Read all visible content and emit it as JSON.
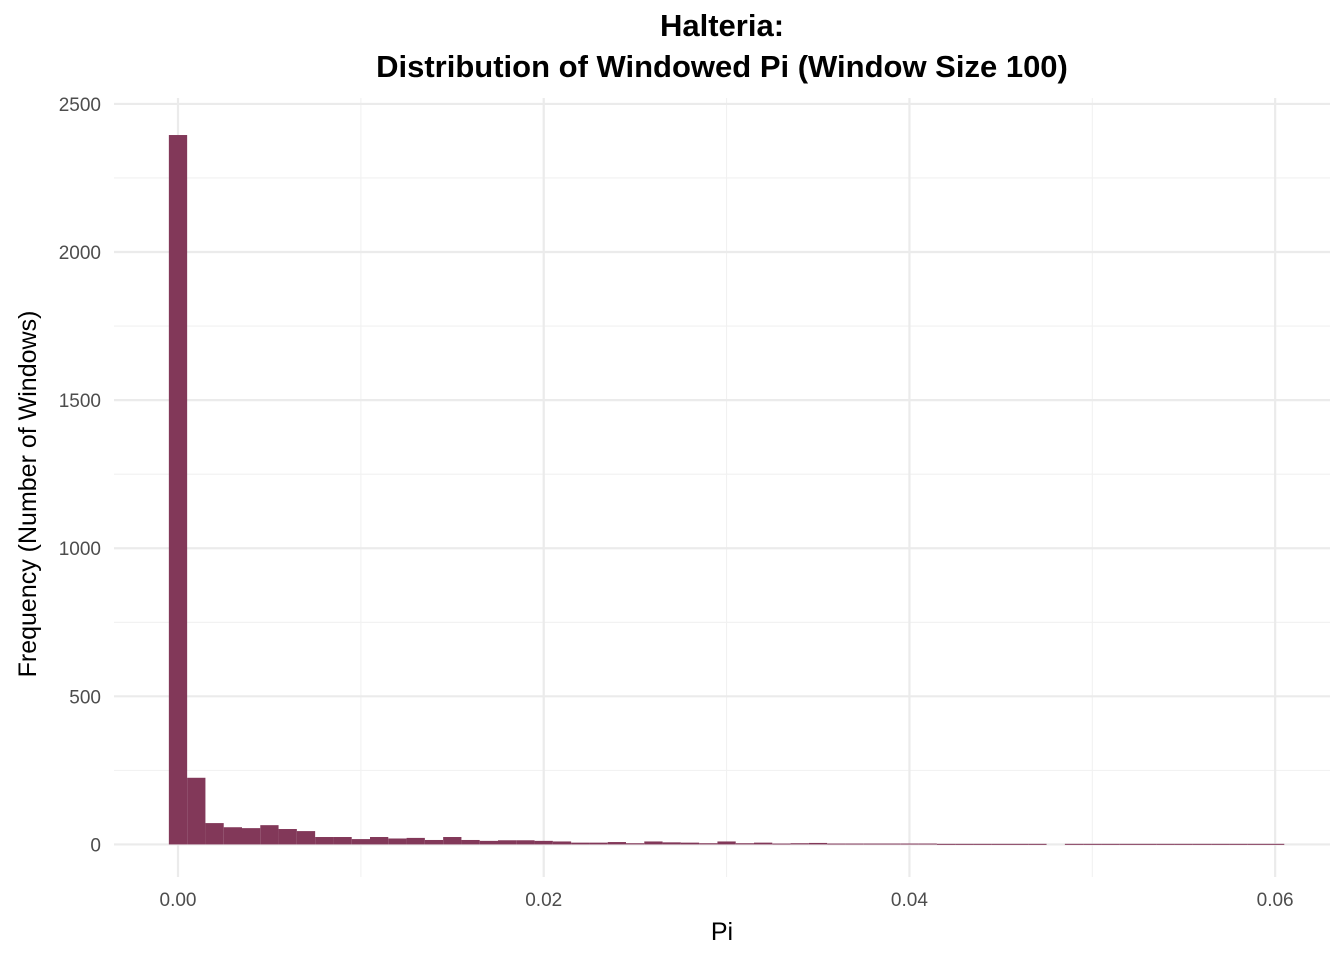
{
  "chart_data": {
    "type": "bar",
    "title_lines": [
      "Halteria:",
      "Distribution of Windowed Pi (Window Size 100)"
    ],
    "xlabel": "Pi",
    "ylabel": "Frequency (Number of Windows)",
    "xlim": [
      -0.0035,
      0.063
    ],
    "ylim": [
      -110,
      2520
    ],
    "x_ticks": [
      0.0,
      0.02,
      0.04,
      0.06
    ],
    "x_tick_labels": [
      "0.00",
      "0.02",
      "0.04",
      "0.06"
    ],
    "y_ticks": [
      0,
      500,
      1000,
      1500,
      2000,
      2500
    ],
    "y_tick_labels": [
      "0",
      "500",
      "1000",
      "1500",
      "2000",
      "2500"
    ],
    "grid": true,
    "bar_color": "#823859",
    "bin_width": 0.001,
    "bin_start": -0.0005,
    "values": [
      2395,
      225,
      72,
      58,
      55,
      65,
      52,
      45,
      25,
      25,
      18,
      25,
      20,
      22,
      15,
      25,
      15,
      12,
      14,
      14,
      12,
      10,
      6,
      6,
      8,
      4,
      10,
      7,
      6,
      4,
      10,
      4,
      6,
      3,
      4,
      5,
      3,
      3,
      3,
      3,
      3,
      3,
      2,
      2,
      2,
      2,
      2,
      2,
      0,
      2,
      2,
      2,
      2,
      2,
      2,
      2,
      2,
      2,
      2,
      2,
      2
    ]
  }
}
